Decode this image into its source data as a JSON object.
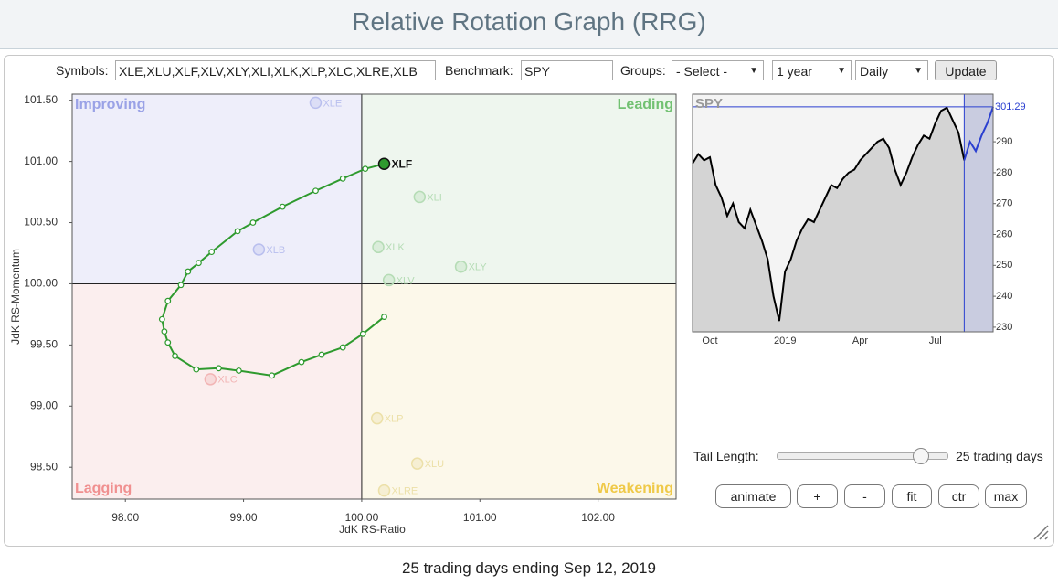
{
  "header": {
    "title": "Relative Rotation Graph (RRG)"
  },
  "controls": {
    "symbols_label": "Symbols:",
    "symbols": "XLE,XLU,XLF,XLV,XLY,XLI,XLK,XLP,XLC,XLRE,XLB",
    "benchmark_label": "Benchmark:",
    "benchmark": "SPY",
    "groups_label": "Groups:",
    "groups": "- Select -",
    "period": "1 year",
    "interval": "Daily",
    "update": "Update",
    "tail_label": "Tail Length:",
    "tail_value": "25 trading days",
    "buttons": [
      "animate",
      "+",
      "-",
      "fit",
      "ctr",
      "max"
    ]
  },
  "footer": "25 trading days ending Sep 12, 2019",
  "chart_data": [
    {
      "type": "rrg",
      "xlabel": "JdK RS-Ratio",
      "ylabel": "JdK RS-Momentum",
      "annotations": [
        "Improving",
        "Leading",
        "Lagging",
        "Weakening"
      ],
      "reference_lines": {
        "x": 100,
        "y": 100
      },
      "xlim": [
        97.55,
        102.66
      ],
      "ylim": [
        98.24,
        101.55
      ],
      "xticks": [
        {
          "value": 98,
          "label": "98.00"
        },
        {
          "value": 99,
          "label": "99.00"
        },
        {
          "value": 100,
          "label": "100.00"
        },
        {
          "value": 101,
          "label": "101.00"
        },
        {
          "value": 102,
          "label": "102.00"
        }
      ],
      "yticks": [
        {
          "value": 98.5,
          "label": "98.50"
        },
        {
          "value": 99,
          "label": "99.00"
        },
        {
          "value": 99.5,
          "label": "99.50"
        },
        {
          "value": 100,
          "label": "100.00"
        },
        {
          "value": 100.5,
          "label": "100.50"
        },
        {
          "value": 101,
          "label": "101.00"
        },
        {
          "value": 101.5,
          "label": "101.50"
        }
      ],
      "series": [
        {
          "name": "XLE",
          "color": "#b9bfee",
          "x": [
            99.61
          ],
          "values": [
            101.48
          ]
        },
        {
          "name": "XLB",
          "color": "#b9bfee",
          "x": [
            99.13
          ],
          "values": [
            100.28
          ]
        },
        {
          "name": "XLK",
          "color": "#b5dcb5",
          "x": [
            100.14
          ],
          "values": [
            100.3
          ]
        },
        {
          "name": "XLI",
          "color": "#b5dcb5",
          "x": [
            100.49
          ],
          "values": [
            100.71
          ]
        },
        {
          "name": "XLY",
          "color": "#b5dcb5",
          "x": [
            100.84
          ],
          "values": [
            100.14
          ]
        },
        {
          "name": "XLV",
          "color": "#b5dcb5",
          "x": [
            100.23
          ],
          "values": [
            100.03
          ]
        },
        {
          "name": "XLP",
          "color": "#ece0a8",
          "x": [
            100.13
          ],
          "values": [
            98.9
          ]
        },
        {
          "name": "XLU",
          "color": "#ece0a8",
          "x": [
            100.47
          ],
          "values": [
            98.53
          ]
        },
        {
          "name": "XLRE",
          "color": "#ece0a8",
          "x": [
            100.19
          ],
          "values": [
            98.31
          ]
        },
        {
          "name": "XLC",
          "color": "#f2b5b5",
          "x": [
            98.72
          ],
          "values": [
            99.22
          ]
        },
        {
          "name": "XLF",
          "color": "#2e9a2e",
          "x": [
            100.19,
            100.01,
            99.84,
            99.66,
            99.49,
            99.24,
            98.96,
            98.79,
            98.6,
            98.42,
            98.36,
            98.33,
            98.31,
            98.36,
            98.47,
            98.53,
            98.62,
            98.73,
            98.95,
            99.08,
            99.33,
            99.61,
            99.84,
            100.03,
            100.19
          ],
          "values": [
            99.73,
            99.59,
            99.48,
            99.42,
            99.36,
            99.25,
            99.29,
            99.31,
            99.3,
            99.41,
            99.52,
            99.61,
            99.71,
            99.86,
            99.99,
            100.1,
            100.17,
            100.26,
            100.43,
            100.5,
            100.63,
            100.76,
            100.86,
            100.94,
            100.98
          ]
        }
      ]
    },
    {
      "type": "line",
      "title": "SPY",
      "categories": [
        null,
        null,
        null,
        "Oct",
        null,
        null,
        null,
        null,
        null,
        null,
        null,
        null,
        null,
        null,
        null,
        null,
        "2019",
        null,
        null,
        null,
        null,
        null,
        null,
        null,
        null,
        null,
        null,
        null,
        null,
        "Apr",
        null,
        null,
        null,
        null,
        null,
        null,
        null,
        null,
        null,
        null,
        null,
        null,
        "Jul",
        null,
        null,
        null,
        null,
        null,
        null,
        null,
        null,
        null,
        null
      ],
      "series": [
        {
          "color": "#000000",
          "values": [
            283,
            286,
            284,
            285,
            276,
            272,
            266,
            270,
            264,
            262,
            268,
            263,
            258,
            252,
            240,
            232,
            248,
            252,
            258,
            262,
            265,
            264,
            268,
            272,
            276,
            275,
            278,
            280,
            281,
            284,
            286,
            288,
            290,
            291,
            288,
            281,
            276,
            280,
            285,
            289,
            292,
            291,
            296,
            300,
            301,
            297,
            293,
            284,
            null,
            null,
            null,
            null,
            null
          ]
        },
        {
          "color": "#2a3fd0",
          "values": [
            null,
            null,
            null,
            null,
            null,
            null,
            null,
            null,
            null,
            null,
            null,
            null,
            null,
            null,
            null,
            null,
            null,
            null,
            null,
            null,
            null,
            null,
            null,
            null,
            null,
            null,
            null,
            null,
            null,
            null,
            null,
            null,
            null,
            null,
            null,
            null,
            null,
            null,
            null,
            null,
            null,
            null,
            null,
            null,
            null,
            null,
            null,
            284,
            290,
            287,
            292,
            296,
            301.29
          ]
        }
      ],
      "last_value": 301.29,
      "ylim": [
        228.5,
        305.4
      ],
      "yticks": [
        230,
        240,
        250,
        260,
        270,
        280,
        290
      ]
    }
  ]
}
